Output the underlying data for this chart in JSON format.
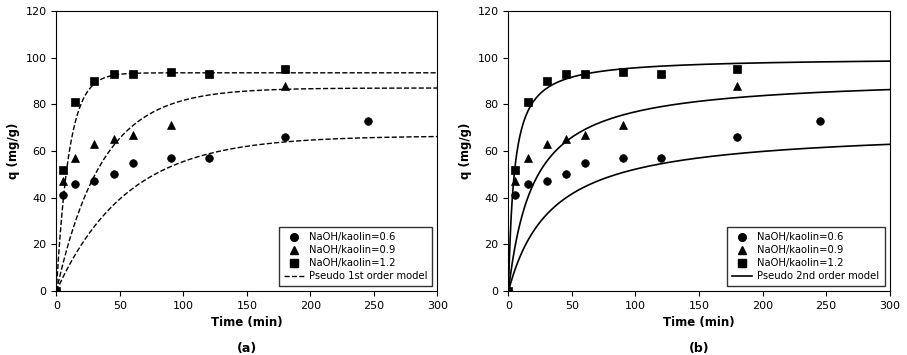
{
  "scatter_time": [
    0,
    5,
    15,
    30,
    45,
    60,
    90,
    120,
    180,
    245
  ],
  "scatter_06": [
    0,
    41,
    46,
    47,
    50,
    55,
    57,
    57,
    66,
    73
  ],
  "scatter_09": [
    0,
    47,
    57,
    63,
    65,
    67,
    71,
    null,
    88,
    null
  ],
  "scatter_12": [
    0,
    52,
    81,
    90,
    93,
    93,
    94,
    93,
    95,
    null
  ],
  "pseudo1_qe_06": 66.5,
  "pseudo1_k1_06": 0.018,
  "pseudo1_qe_09": 87.0,
  "pseudo1_k1_09": 0.028,
  "pseudo1_qe_12": 93.5,
  "pseudo1_k1_12": 0.1,
  "pseudo2_qe_06": 70.0,
  "pseudo2_k2_06": 0.00042,
  "pseudo2_qe_09": 92.0,
  "pseudo2_k2_09": 0.00055,
  "pseudo2_qe_12": 100.0,
  "pseudo2_k2_12": 0.0022,
  "xlabel": "Time (min)",
  "ylabel": "q (mg/g)",
  "xlim": [
    0,
    300
  ],
  "ylim": [
    0,
    120
  ],
  "xticks": [
    0,
    50,
    100,
    150,
    200,
    250,
    300
  ],
  "yticks": [
    0,
    20,
    40,
    60,
    80,
    100,
    120
  ],
  "legend_06": "NaOH/kaolin=0.6",
  "legend_09": "NaOH/kaolin=0.9",
  "legend_12": "NaOH/kaolin=1.2",
  "legend_model_a": "Pseudo 1st order model",
  "legend_model_b": "Pseudo 2nd order model",
  "label_a": "(a)",
  "label_b": "(b)",
  "background_color": "#ffffff",
  "line_color": "#000000",
  "marker_color": "#000000"
}
